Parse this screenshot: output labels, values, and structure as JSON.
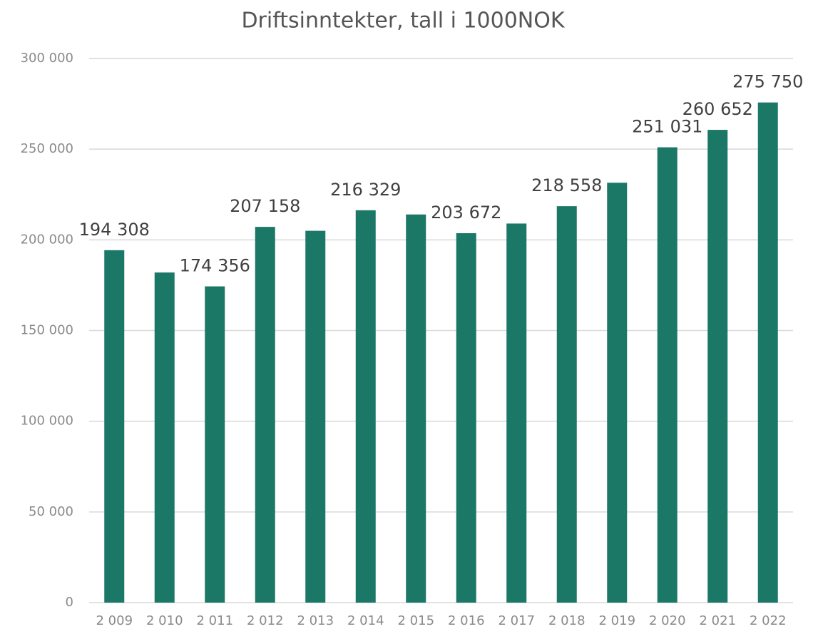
{
  "chart_data": {
    "type": "bar",
    "title": "Driftsinntekter, tall i 1000NOK",
    "categories": [
      "2 009",
      "2 010",
      "2 011",
      "2 012",
      "2 013",
      "2 014",
      "2 015",
      "2 016",
      "2 017",
      "2 018",
      "2 019",
      "2 020",
      "2 021",
      "2 022"
    ],
    "values": [
      194308,
      182000,
      174356,
      207158,
      205000,
      216329,
      214000,
      203672,
      209000,
      218558,
      231500,
      251031,
      260652,
      275750
    ],
    "value_labels": [
      "194 308",
      null,
      "174 356",
      "207 158",
      null,
      "216 329",
      null,
      "203 672",
      null,
      "218 558",
      null,
      "251 031",
      "260 652",
      "275 750"
    ],
    "color": "#1b7866",
    "ylim": [
      0,
      300000
    ],
    "yticks": [
      0,
      {
        "value": 50000,
        "label": "50 000"
      },
      {
        "value": 100000,
        "label": "100 000"
      },
      {
        "value": 150000,
        "label": "150 000"
      },
      {
        "value": 200000,
        "label": "200 000"
      },
      {
        "value": 250000,
        "label": "250 000"
      },
      {
        "value": 300000,
        "label": "300 000"
      }
    ],
    "grid": true
  }
}
